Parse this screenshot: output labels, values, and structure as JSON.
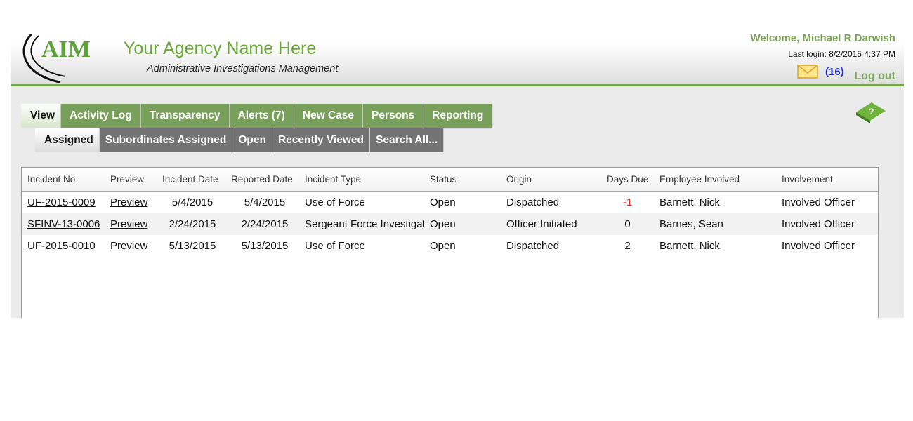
{
  "header": {
    "logo_text": "AIM",
    "agency_name": "Your Agency Name Here",
    "subtitle": "Administrative Investigations Management",
    "welcome": "Welcome, Michael R Darwish",
    "last_login": "Last login: 8/2/2015 4:37 PM",
    "message_count": "(16)",
    "logout": "Log out",
    "mail_icon": "envelope-icon",
    "help_icon": "help-book-icon"
  },
  "tabs": [
    {
      "label": "View",
      "active": true
    },
    {
      "label": "Activity Log"
    },
    {
      "label": "Transparency"
    },
    {
      "label": "Alerts (7)"
    },
    {
      "label": "New Case"
    },
    {
      "label": "Persons"
    },
    {
      "label": "Reporting"
    }
  ],
  "subtabs": [
    {
      "label": "Assigned",
      "active": true
    },
    {
      "label": "Subordinates Assigned"
    },
    {
      "label": "Open"
    },
    {
      "label": "Recently Viewed"
    },
    {
      "label": "Search All..."
    }
  ],
  "table": {
    "columns": [
      "Incident No",
      "Preview",
      "Incident Date",
      "Reported Date",
      "Incident Type",
      "Status",
      "Origin",
      "Days Due",
      "Employee Involved",
      "Involvement"
    ],
    "rows": [
      [
        "UF-2015-0009",
        "Preview",
        "5/4/2015",
        "5/4/2015",
        "Use of Force",
        "Open",
        "Dispatched",
        "-1",
        "Barnett, Nick",
        "Involved Officer"
      ],
      [
        "SFINV-13-0006",
        "Preview",
        "2/24/2015",
        "2/24/2015",
        "Sergeant Force Investigation",
        "Open",
        "Officer Initiated",
        "0",
        "Barnes, Sean",
        "Involved Officer"
      ],
      [
        "UF-2015-0010",
        "Preview",
        "5/13/2015",
        "5/13/2015",
        "Use of Force",
        "Open",
        "Dispatched",
        "2",
        "Barnett, Nick",
        "Involved Officer"
      ]
    ]
  },
  "colors": {
    "brand_green": "#76a54a",
    "tab_green": "#79a05a",
    "subtab_grey": "#737373",
    "overdue_red": "#e8231e",
    "count_blue": "#1f2fe0"
  }
}
